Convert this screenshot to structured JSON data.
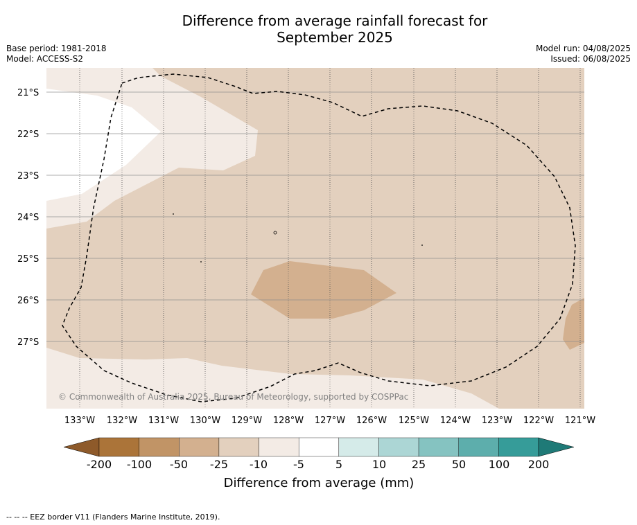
{
  "title_line1": "Difference from average rainfall forecast for",
  "title_line2": "September 2025",
  "base_period": "Base period: 1981-2018",
  "model": "Model: ACCESS-S2",
  "model_run": "Model run: 04/08/2025",
  "issued": "Issued: 06/08/2025",
  "lat_labels": [
    "21°S",
    "22°S",
    "23°S",
    "24°S",
    "25°S",
    "26°S",
    "27°S"
  ],
  "lon_labels": [
    "133°W",
    "132°W",
    "131°W",
    "130°W",
    "129°W",
    "128°W",
    "127°W",
    "126°W",
    "125°W",
    "124°W",
    "123°W",
    "122°W",
    "121°W"
  ],
  "copyright": "© Commonwealth of Australia 2025, Bureau of Meteorology, supported by COSPPac",
  "colorbar": {
    "ticks": [
      "-200",
      "-100",
      "-50",
      "-25",
      "-10",
      "-5",
      "5",
      "10",
      "25",
      "50",
      "100",
      "200"
    ],
    "colors": [
      "#ab7439",
      "#c19466",
      "#d3b08f",
      "#e3d0be",
      "#f3ebe5",
      "#ffffff",
      "#d5ebe9",
      "#acd6d5",
      "#85c3c1",
      "#5daeac",
      "#369c99"
    ],
    "extend_low_color": "#8e5a2a",
    "extend_high_color": "#1f7a77",
    "label": "Difference from average (mm)"
  },
  "region_colors": {
    "base": "#e3d0be",
    "light": "#f3ebe5",
    "white": "#ffffff",
    "dark": "#d3b08f"
  },
  "footnote": "--  --  -- EEZ border V11 (Flanders Marine Institute, 2019)."
}
